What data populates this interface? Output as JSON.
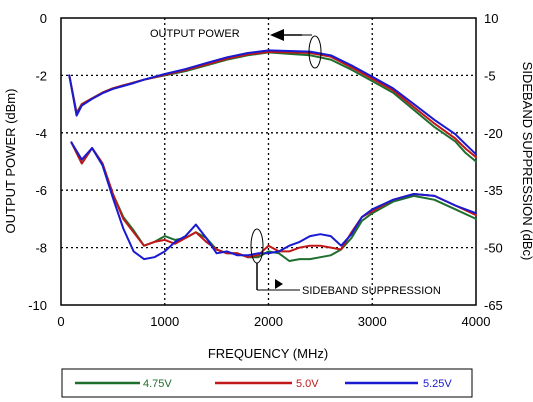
{
  "chart_data": {
    "type": "line",
    "title": "",
    "xlabel": "FREQUENCY (MHz)",
    "ylabel_left": "OUTPUT POWER (dBm)",
    "ylabel_right": "SIDEBAND SUPPRESSION (dBc)",
    "xlim": [
      0,
      4000
    ],
    "ylim_left": [
      -10,
      0
    ],
    "ylim_right": [
      -65,
      10
    ],
    "x_ticks": [
      0,
      1000,
      2000,
      3000,
      4000
    ],
    "y_left_ticks": [
      0,
      -2,
      -4,
      -6,
      -8,
      -10
    ],
    "y_right_ticks": [
      10,
      -5,
      -20,
      -35,
      -50,
      -65
    ],
    "grid": "dashed at x=1000,2000,3000 and y=-2,-4,-6,-8",
    "legend_position": "bottom",
    "annotations": [
      "OUTPUT POWER",
      "SIDEBAND SUPPRESSION"
    ],
    "colors": {
      "4.75V": "#1e6e2e",
      "5.0V": "#c01818",
      "5.25V": "#1a1ad0"
    },
    "series": [
      {
        "name": "4.75V",
        "axis": "left",
        "group": "OUTPUT POWER",
        "x": [
          80,
          150,
          200,
          300,
          400,
          500,
          600,
          700,
          800,
          900,
          1000,
          1200,
          1400,
          1600,
          1800,
          2000,
          2200,
          2400,
          2600,
          2800,
          3000,
          3200,
          3400,
          3600,
          3800,
          3900,
          4000
        ],
        "y": [
          -2.0,
          -3.3,
          -3.0,
          -2.8,
          -2.6,
          -2.45,
          -2.35,
          -2.25,
          -2.15,
          -2.07,
          -2.0,
          -1.85,
          -1.65,
          -1.45,
          -1.3,
          -1.2,
          -1.25,
          -1.3,
          -1.45,
          -1.8,
          -2.2,
          -2.6,
          -3.2,
          -3.8,
          -4.3,
          -4.7,
          -5.0
        ]
      },
      {
        "name": "5.0V",
        "axis": "left",
        "group": "OUTPUT POWER",
        "x": [
          80,
          150,
          200,
          300,
          400,
          500,
          600,
          700,
          800,
          900,
          1000,
          1200,
          1400,
          1600,
          1800,
          2000,
          2200,
          2400,
          2600,
          2800,
          3000,
          3200,
          3400,
          3600,
          3800,
          3900,
          4000
        ],
        "y": [
          -2.0,
          -3.35,
          -3.0,
          -2.8,
          -2.6,
          -2.45,
          -2.35,
          -2.25,
          -2.15,
          -2.07,
          -1.98,
          -1.82,
          -1.62,
          -1.42,
          -1.27,
          -1.18,
          -1.2,
          -1.22,
          -1.35,
          -1.72,
          -2.12,
          -2.52,
          -3.1,
          -3.68,
          -4.2,
          -4.55,
          -4.85
        ]
      },
      {
        "name": "5.25V",
        "axis": "left",
        "group": "OUTPUT POWER",
        "x": [
          80,
          150,
          200,
          300,
          400,
          500,
          600,
          700,
          800,
          900,
          1000,
          1200,
          1400,
          1600,
          1800,
          2000,
          2200,
          2400,
          2600,
          2800,
          3000,
          3200,
          3400,
          3600,
          3800,
          3900,
          4000
        ],
        "y": [
          -2.0,
          -3.4,
          -3.05,
          -2.82,
          -2.62,
          -2.47,
          -2.37,
          -2.27,
          -2.15,
          -2.05,
          -1.95,
          -1.78,
          -1.57,
          -1.37,
          -1.22,
          -1.13,
          -1.15,
          -1.17,
          -1.3,
          -1.65,
          -2.05,
          -2.45,
          -3.0,
          -3.55,
          -4.05,
          -4.4,
          -4.75
        ]
      },
      {
        "name": "4.75V",
        "axis": "right",
        "group": "SIDEBAND SUPPRESSION",
        "x": [
          100,
          200,
          300,
          400,
          500,
          600,
          700,
          800,
          900,
          1000,
          1100,
          1200,
          1300,
          1400,
          1500,
          1600,
          1700,
          1800,
          1900,
          2000,
          2100,
          2200,
          2300,
          2400,
          2500,
          2600,
          2700,
          2800,
          2900,
          3000,
          3200,
          3400,
          3600,
          3800,
          4000
        ],
        "y": [
          -22.5,
          -28,
          -24,
          -28,
          -36,
          -42,
          -45.5,
          -49.5,
          -48.5,
          -47,
          -48,
          -47.5,
          -46,
          -47.5,
          -50.5,
          -51.5,
          -51.5,
          -52.5,
          -52.5,
          -51,
          -51.5,
          -53.5,
          -53,
          -53,
          -52.5,
          -52,
          -50.5,
          -47.5,
          -43,
          -41,
          -38,
          -36.5,
          -37.5,
          -40,
          -42.5
        ]
      },
      {
        "name": "5.0V",
        "axis": "right",
        "group": "SIDEBAND SUPPRESSION",
        "x": [
          100,
          200,
          300,
          400,
          500,
          600,
          700,
          800,
          900,
          1000,
          1100,
          1200,
          1300,
          1400,
          1500,
          1600,
          1700,
          1800,
          1900,
          2000,
          2100,
          2200,
          2300,
          2400,
          2500,
          2600,
          2700,
          2800,
          2900,
          3000,
          3200,
          3400,
          3600,
          3800,
          4000
        ],
        "y": [
          -22.5,
          -28,
          -24,
          -28,
          -36,
          -42.5,
          -46,
          -49.5,
          -48.5,
          -48,
          -49,
          -47.5,
          -46,
          -48.5,
          -50.5,
          -51.5,
          -51.5,
          -52.5,
          -52,
          -49.5,
          -51,
          -51,
          -50,
          -49.5,
          -49.5,
          -50,
          -50.5,
          -46,
          -42,
          -40.5,
          -37.5,
          -36,
          -36.5,
          -39,
          -41.5
        ]
      },
      {
        "name": "5.25V",
        "axis": "right",
        "group": "SIDEBAND SUPPRESSION",
        "x": [
          100,
          200,
          300,
          400,
          500,
          600,
          700,
          800,
          900,
          1000,
          1100,
          1200,
          1300,
          1400,
          1500,
          1600,
          1700,
          1800,
          1900,
          2000,
          2100,
          2200,
          2300,
          2400,
          2500,
          2600,
          2700,
          2800,
          2900,
          3000,
          3200,
          3400,
          3600,
          3800,
          4000
        ],
        "y": [
          -22.5,
          -27,
          -24,
          -28.5,
          -37,
          -45,
          -51,
          -53,
          -52.5,
          -51,
          -48.5,
          -47,
          -44,
          -47.5,
          -51.5,
          -51,
          -52,
          -52,
          -51.5,
          -51.5,
          -51,
          -49.5,
          -48.5,
          -47,
          -46.5,
          -47,
          -49.5,
          -46.5,
          -42,
          -40,
          -37.5,
          -36,
          -36.5,
          -39,
          -41
        ]
      }
    ]
  }
}
